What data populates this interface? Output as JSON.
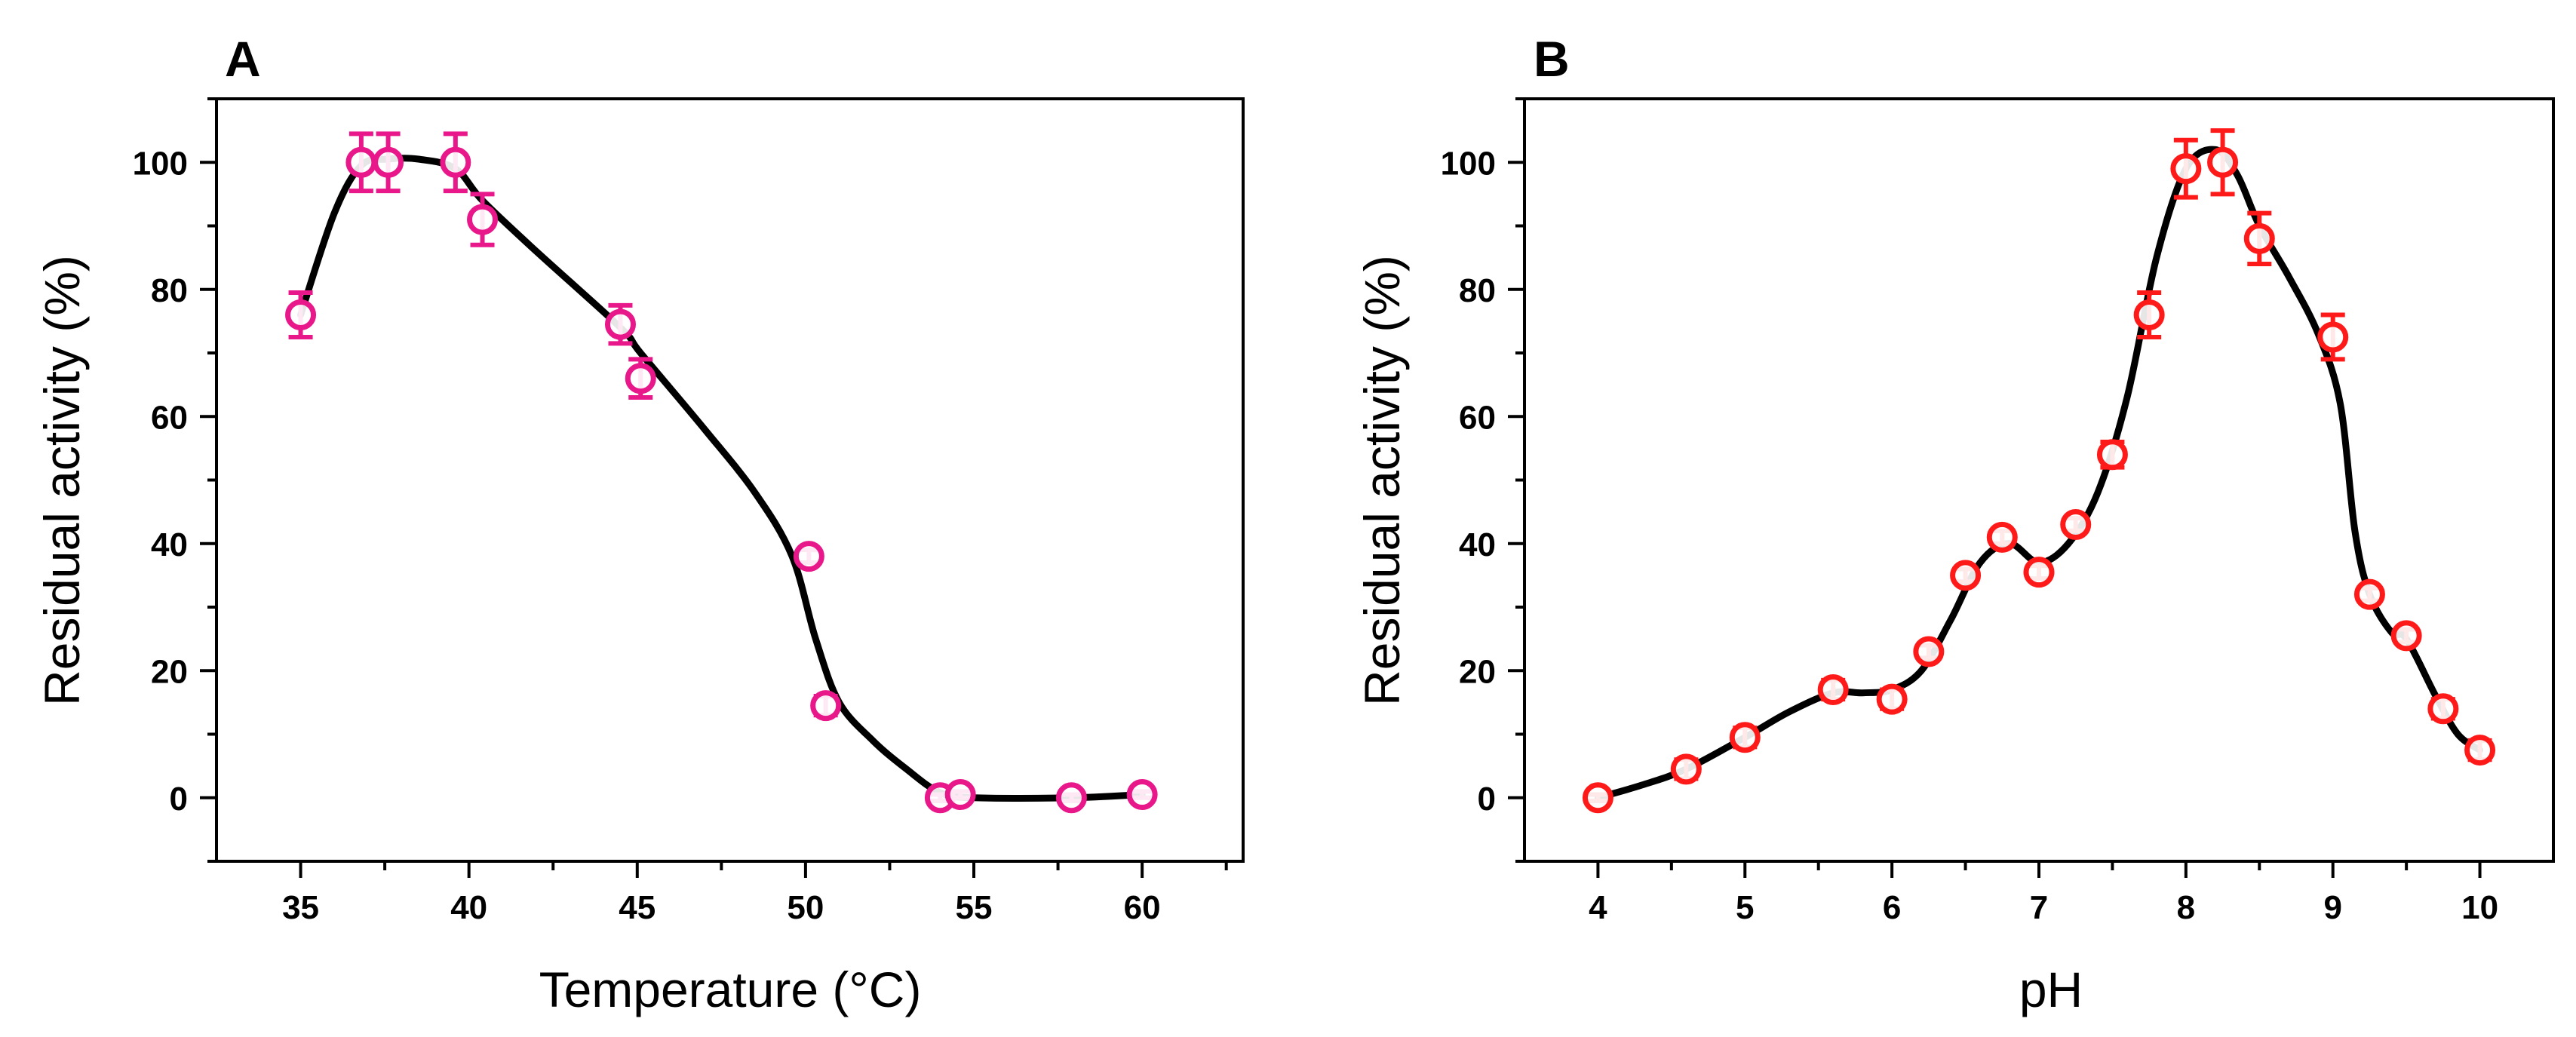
{
  "chart_data": [
    {
      "type": "scatter",
      "panel_label": "A",
      "title": "",
      "xlabel": "Temperature (°C)",
      "ylabel": "Residual activity (%)",
      "xlim": [
        32.5,
        63
      ],
      "ylim": [
        -10,
        110
      ],
      "xticks": [
        35,
        40,
        45,
        50,
        55,
        60
      ],
      "yticks": [
        0,
        20,
        40,
        60,
        80,
        100
      ],
      "grid": false,
      "legend": "none",
      "marker_color": "#e8178a",
      "line_color": "#000000",
      "points": [
        {
          "x": 35.0,
          "y": 76,
          "err": 3.5
        },
        {
          "x": 36.8,
          "y": 100,
          "err": 4.5
        },
        {
          "x": 37.6,
          "y": 100,
          "err": 4.5
        },
        {
          "x": 39.6,
          "y": 100,
          "err": 4.5
        },
        {
          "x": 40.4,
          "y": 91,
          "err": 4
        },
        {
          "x": 44.5,
          "y": 74.5,
          "err": 3
        },
        {
          "x": 45.1,
          "y": 66,
          "err": 3
        },
        {
          "x": 50.1,
          "y": 38,
          "err": 1
        },
        {
          "x": 50.6,
          "y": 14.5,
          "err": 1.5
        },
        {
          "x": 54.0,
          "y": 0,
          "err": 0.5
        },
        {
          "x": 54.6,
          "y": 0.5,
          "err": 0.5
        },
        {
          "x": 57.9,
          "y": 0,
          "err": 0.5
        },
        {
          "x": 60.0,
          "y": 0.5,
          "err": 0.5
        }
      ],
      "curve": [
        [
          35,
          76
        ],
        [
          36,
          92
        ],
        [
          36.8,
          99.5
        ],
        [
          37.6,
          100.5
        ],
        [
          38.5,
          100.5
        ],
        [
          39.6,
          99
        ],
        [
          40.4,
          94
        ],
        [
          42,
          86
        ],
        [
          44.5,
          74
        ],
        [
          45.1,
          70
        ],
        [
          47,
          58
        ],
        [
          48.5,
          48
        ],
        [
          49.6,
          38
        ],
        [
          50.3,
          25
        ],
        [
          51.0,
          15
        ],
        [
          52,
          9
        ],
        [
          53,
          4.5
        ],
        [
          54,
          0.8
        ],
        [
          55,
          0
        ],
        [
          57.9,
          0
        ],
        [
          60,
          0.5
        ]
      ]
    },
    {
      "type": "scatter",
      "panel_label": "B",
      "title": "",
      "xlabel": "pH",
      "ylabel": "Residual activity (%)",
      "xlim": [
        3.5,
        10.5
      ],
      "ylim": [
        -10,
        110
      ],
      "xticks": [
        4,
        5,
        6,
        7,
        8,
        9,
        10
      ],
      "yticks": [
        0,
        20,
        40,
        60,
        80,
        100
      ],
      "grid": false,
      "legend": "none",
      "marker_color": "#ff1a1a",
      "line_color": "#000000",
      "points": [
        {
          "x": 4.0,
          "y": 0,
          "err": 0.5
        },
        {
          "x": 4.6,
          "y": 4.5,
          "err": 1.5
        },
        {
          "x": 5.0,
          "y": 9.5,
          "err": 1.5
        },
        {
          "x": 5.6,
          "y": 17,
          "err": 1.5
        },
        {
          "x": 6.0,
          "y": 15.5,
          "err": 1.5
        },
        {
          "x": 6.25,
          "y": 23,
          "err": 1
        },
        {
          "x": 6.5,
          "y": 35,
          "err": 1
        },
        {
          "x": 6.75,
          "y": 41,
          "err": 1
        },
        {
          "x": 7.0,
          "y": 35.5,
          "err": 1
        },
        {
          "x": 7.25,
          "y": 43,
          "err": 1
        },
        {
          "x": 7.5,
          "y": 54,
          "err": 2
        },
        {
          "x": 7.75,
          "y": 76,
          "err": 3.5
        },
        {
          "x": 8.0,
          "y": 99,
          "err": 4.5
        },
        {
          "x": 8.25,
          "y": 100,
          "err": 5
        },
        {
          "x": 8.5,
          "y": 88,
          "err": 4
        },
        {
          "x": 9.0,
          "y": 72.5,
          "err": 3.5
        },
        {
          "x": 9.25,
          "y": 32,
          "err": 1
        },
        {
          "x": 9.5,
          "y": 25.5,
          "err": 1
        },
        {
          "x": 9.75,
          "y": 14,
          "err": 1.5
        },
        {
          "x": 10.0,
          "y": 7.5,
          "err": 1.5
        }
      ],
      "curve": [
        [
          4,
          0
        ],
        [
          4.3,
          2
        ],
        [
          4.6,
          4.5
        ],
        [
          5,
          9.5
        ],
        [
          5.3,
          13.5
        ],
        [
          5.6,
          16.5
        ],
        [
          5.8,
          16.5
        ],
        [
          6,
          17
        ],
        [
          6.2,
          20
        ],
        [
          6.4,
          28
        ],
        [
          6.6,
          37
        ],
        [
          6.8,
          40
        ],
        [
          7.0,
          37
        ],
        [
          7.2,
          40
        ],
        [
          7.4,
          48
        ],
        [
          7.6,
          63
        ],
        [
          7.8,
          85
        ],
        [
          8.0,
          99
        ],
        [
          8.2,
          102
        ],
        [
          8.35,
          98
        ],
        [
          8.5,
          90
        ],
        [
          8.7,
          82
        ],
        [
          8.9,
          73
        ],
        [
          9.05,
          62
        ],
        [
          9.15,
          42
        ],
        [
          9.25,
          32
        ],
        [
          9.4,
          26
        ],
        [
          9.5,
          25
        ],
        [
          9.7,
          16
        ],
        [
          9.85,
          10
        ],
        [
          10,
          7.5
        ]
      ]
    }
  ]
}
